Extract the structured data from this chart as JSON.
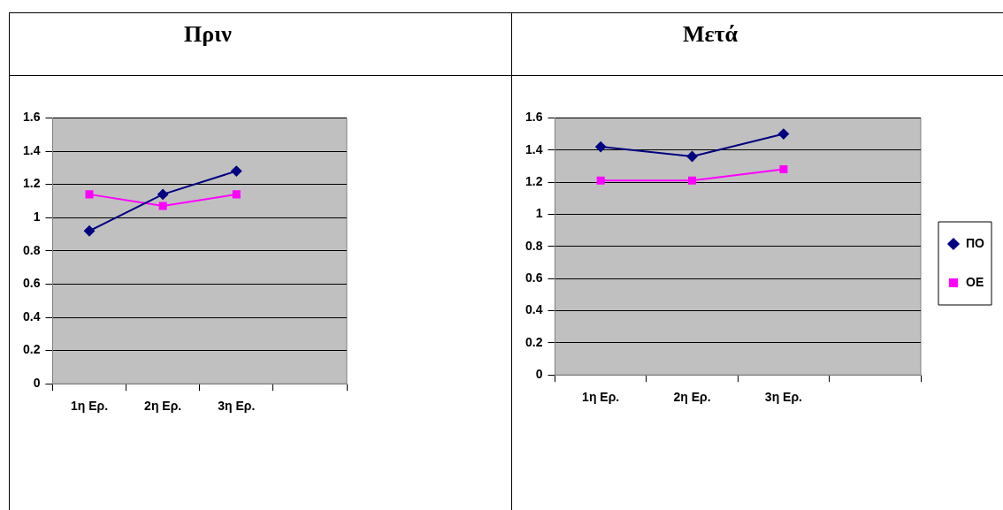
{
  "chart_data": [
    {
      "type": "line",
      "title": "Πριν",
      "categories": [
        "1η Ερ.",
        "2η Ερ.",
        "3η Ερ.",
        null
      ],
      "series": [
        {
          "color": "#000080",
          "marker": "diamond",
          "values": [
            0.92,
            1.14,
            1.28,
            null
          ]
        },
        {
          "color": "#ff00ff",
          "marker": "square",
          "values": [
            1.14,
            1.07,
            1.14,
            null
          ]
        }
      ],
      "ylim": [
        0,
        1.6
      ],
      "yticks": [
        0,
        0.2,
        0.4,
        0.6,
        0.8,
        1,
        1.2,
        1.4,
        1.6
      ],
      "grid": "y",
      "legend": false
    },
    {
      "type": "line",
      "title": "Μετά",
      "categories": [
        "1η Ερ.",
        "2η Ερ.",
        "3η Ερ.",
        null
      ],
      "series": [
        {
          "name": "ΠΟ",
          "color": "#000080",
          "marker": "diamond",
          "values": [
            1.42,
            1.36,
            1.5,
            null
          ]
        },
        {
          "name": "ΟΕ",
          "color": "#ff00ff",
          "marker": "square",
          "values": [
            1.21,
            1.21,
            1.28,
            null
          ]
        }
      ],
      "ylim": [
        0,
        1.6
      ],
      "yticks": [
        0,
        0.2,
        0.4,
        0.6,
        0.8,
        1,
        1.2,
        1.4,
        1.6
      ],
      "grid": "y",
      "legend": "right"
    }
  ]
}
